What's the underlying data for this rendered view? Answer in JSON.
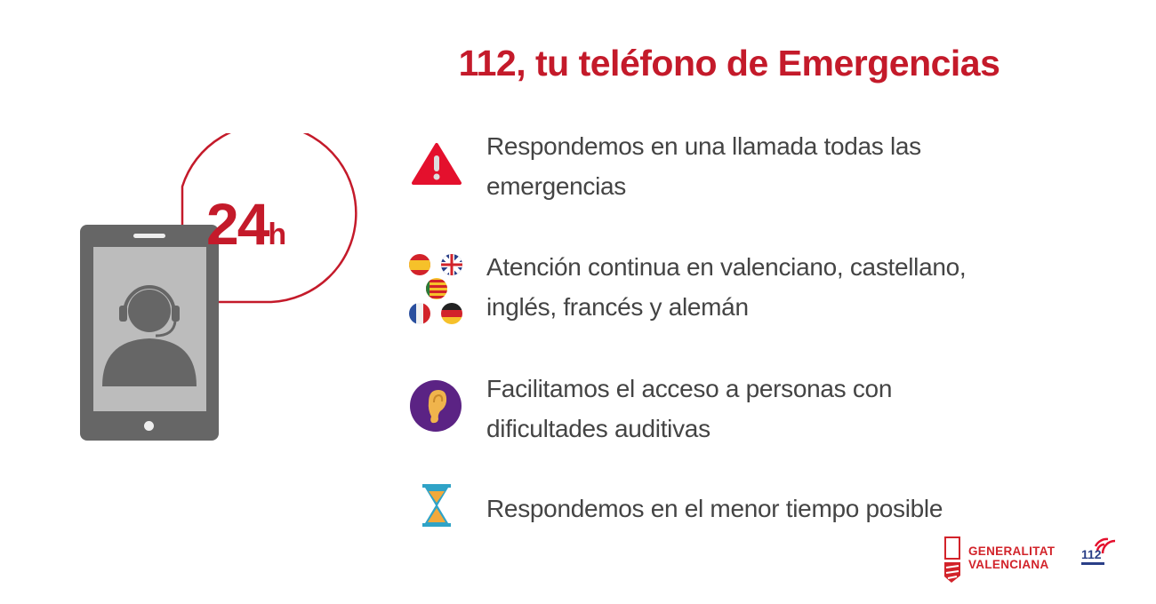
{
  "title": "112, tu teléfono de Emergencias",
  "badge": {
    "number": "24",
    "unit": "h"
  },
  "items": [
    {
      "icon": "warning-triangle-icon",
      "lines": [
        "Respondemos en una llamada todas las",
        "emergencias"
      ]
    },
    {
      "icon": "language-flags-icon",
      "lines": [
        "Atención continua en valenciano, castellano,",
        "inglés, francés y alemán"
      ]
    },
    {
      "icon": "ear-icon",
      "lines": [
        "Facilitamos el acceso a personas con",
        "dificultades auditivas"
      ]
    },
    {
      "icon": "hourglass-icon",
      "lines": [
        "Respondemos en el menor tiempo posible"
      ]
    }
  ],
  "footer": {
    "gv_logo_line1": "GENERALITAT",
    "gv_logo_line2": "VALENCIANA",
    "logo_112": "112"
  },
  "colors": {
    "accent": "#c41a2a",
    "text": "#444444",
    "phone": "#666666",
    "ear_bg": "#5b2384"
  }
}
